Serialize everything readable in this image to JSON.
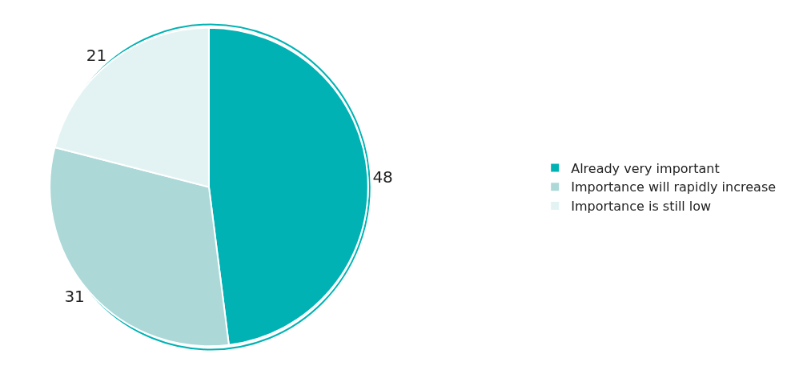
{
  "chart_data": {
    "type": "pie",
    "categories": [
      "Already very important",
      "Importance will rapidly increase",
      "Importance is still low"
    ],
    "values": [
      48,
      31,
      21
    ],
    "colors": [
      "#00b2b4",
      "#acd8d8",
      "#e3f3f3"
    ],
    "data_labels": true,
    "legend": "right"
  }
}
